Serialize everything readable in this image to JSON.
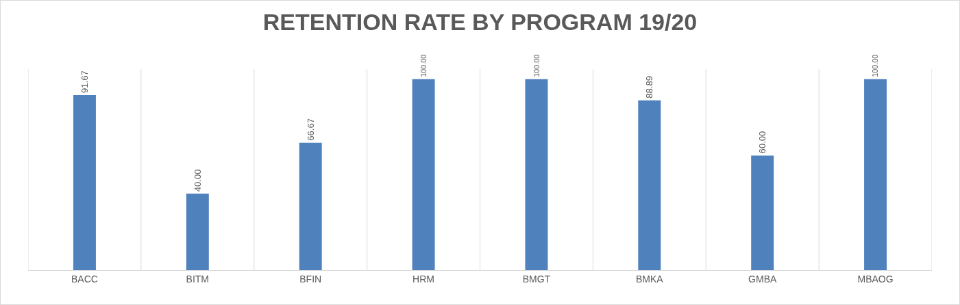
{
  "chart_data": {
    "type": "bar",
    "title": "RETENTION RATE BY PROGRAM 19/20",
    "categories": [
      "BACC",
      "BITM",
      "BFIN",
      "HRM",
      "BMGT",
      "BMKA",
      "GMBA",
      "MBAOG"
    ],
    "values": [
      91.67,
      40.0,
      66.67,
      100.0,
      100.0,
      88.89,
      60.0,
      100.0
    ],
    "value_labels": [
      "91.67",
      "40.00",
      "66.67",
      "100.00",
      "100.00",
      "88.89",
      "60.00",
      "100.00"
    ],
    "color": "#4f81bd",
    "grid": "x",
    "tick_labels": "x"
  }
}
